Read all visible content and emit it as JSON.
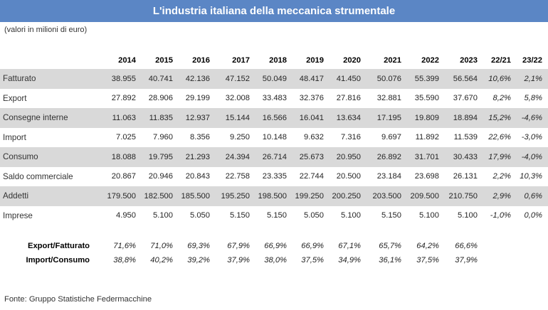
{
  "title": "L'industria italiana della meccanica strumentale",
  "subtitle": "(valori in milioni di euro)",
  "headers": [
    "2014",
    "2015",
    "2016",
    "2017",
    "2018",
    "2019",
    "2020",
    "2021",
    "2022",
    "2023",
    "22/21",
    "23/22"
  ],
  "rows": [
    {
      "label": "Fatturato",
      "values": [
        "38.955",
        "40.741",
        "42.136",
        "47.152",
        "50.049",
        "48.417",
        "41.450",
        "50.076",
        "55.399",
        "56.564",
        "10,6%",
        "2,1%"
      ]
    },
    {
      "label": "Export",
      "values": [
        "27.892",
        "28.906",
        "29.199",
        "32.008",
        "33.483",
        "32.376",
        "27.816",
        "32.881",
        "35.590",
        "37.670",
        "8,2%",
        "5,8%"
      ]
    },
    {
      "label": "Consegne interne",
      "values": [
        "11.063",
        "11.835",
        "12.937",
        "15.144",
        "16.566",
        "16.041",
        "13.634",
        "17.195",
        "19.809",
        "18.894",
        "15,2%",
        "-4,6%"
      ]
    },
    {
      "label": "Import",
      "values": [
        "7.025",
        "7.960",
        "8.356",
        "9.250",
        "10.148",
        "9.632",
        "7.316",
        "9.697",
        "11.892",
        "11.539",
        "22,6%",
        "-3,0%"
      ]
    },
    {
      "label": "Consumo",
      "values": [
        "18.088",
        "19.795",
        "21.293",
        "24.394",
        "26.714",
        "25.673",
        "20.950",
        "26.892",
        "31.701",
        "30.433",
        "17,9%",
        "-4,0%"
      ]
    },
    {
      "label": "Saldo commerciale",
      "values": [
        "20.867",
        "20.946",
        "20.843",
        "22.758",
        "23.335",
        "22.744",
        "20.500",
        "23.184",
        "23.698",
        "26.131",
        "2,2%",
        "10,3%"
      ]
    },
    {
      "label": "Addetti",
      "values": [
        "179.500",
        "182.500",
        "185.500",
        "195.250",
        "198.500",
        "199.250",
        "200.250",
        "203.500",
        "209.500",
        "210.750",
        "2,9%",
        "0,6%"
      ]
    },
    {
      "label": "Imprese",
      "values": [
        "4.950",
        "5.100",
        "5.050",
        "5.150",
        "5.150",
        "5.050",
        "5.100",
        "5.150",
        "5.100",
        "5.100",
        "-1,0%",
        "0,0%"
      ]
    }
  ],
  "ratios": [
    {
      "label": "Export/Fatturato",
      "values": [
        "71,6%",
        "71,0%",
        "69,3%",
        "67,9%",
        "66,9%",
        "66,9%",
        "67,1%",
        "65,7%",
        "64,2%",
        "66,6%"
      ]
    },
    {
      "label": "Import/Consumo",
      "values": [
        "38,8%",
        "40,2%",
        "39,2%",
        "37,9%",
        "38,0%",
        "37,5%",
        "34,9%",
        "36,1%",
        "37,5%",
        "37,9%"
      ]
    }
  ],
  "source": "Fonte: Gruppo Statistiche Federmacchine",
  "colors": {
    "title_bar": "#5b86c5",
    "row_shade": "#d9d9d9"
  }
}
